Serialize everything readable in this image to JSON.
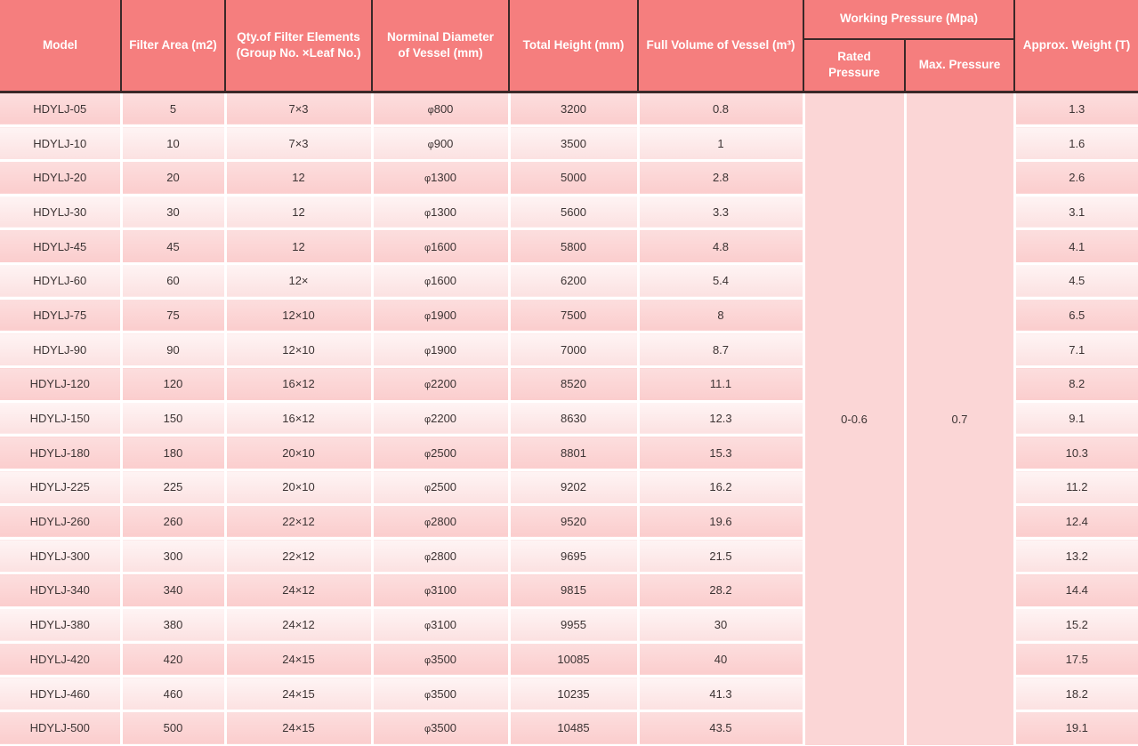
{
  "table": {
    "header": {
      "model": "Model",
      "filter_area": "Filter Area (m2)",
      "qty_filter_elements": "Qty.of Filter Elements (Group No. ×Leaf No.)",
      "nominal_diameter": "Norminal Diameter of Vessel (mm)",
      "total_height": "Total Height (mm)",
      "full_volume": "Full Volume of Vessel (m³)",
      "working_pressure": "Working Pressure (Mpa)",
      "rated_pressure": "Rated Pressure",
      "max_pressure": "Max. Pressure",
      "approx_weight": "Approx. Weight (T)"
    },
    "working_pressure_values": {
      "rated": "0-0.6",
      "max": "0.7"
    },
    "rows": [
      {
        "model": "HDYLJ-05",
        "filter_area": "5",
        "qty": "7×3",
        "diameter": "φ800",
        "height": "3200",
        "volume": "0.8",
        "weight": "1.3"
      },
      {
        "model": "HDYLJ-10",
        "filter_area": "10",
        "qty": "7×3",
        "diameter": "φ900",
        "height": "3500",
        "volume": "1",
        "weight": "1.6"
      },
      {
        "model": "HDYLJ-20",
        "filter_area": "20",
        "qty": "12",
        "diameter": "φ1300",
        "height": "5000",
        "volume": "2.8",
        "weight": "2.6"
      },
      {
        "model": "HDYLJ-30",
        "filter_area": "30",
        "qty": "12",
        "diameter": "φ1300",
        "height": "5600",
        "volume": "3.3",
        "weight": "3.1"
      },
      {
        "model": "HDYLJ-45",
        "filter_area": "45",
        "qty": "12",
        "diameter": "φ1600",
        "height": "5800",
        "volume": "4.8",
        "weight": "4.1"
      },
      {
        "model": "HDYLJ-60",
        "filter_area": "60",
        "qty": "12×",
        "diameter": "φ1600",
        "height": "6200",
        "volume": "5.4",
        "weight": "4.5"
      },
      {
        "model": "HDYLJ-75",
        "filter_area": "75",
        "qty": "12×10",
        "diameter": "φ1900",
        "height": "7500",
        "volume": "8",
        "weight": "6.5"
      },
      {
        "model": "HDYLJ-90",
        "filter_area": "90",
        "qty": "12×10",
        "diameter": "φ1900",
        "height": "7000",
        "volume": "8.7",
        "weight": "7.1"
      },
      {
        "model": "HDYLJ-120",
        "filter_area": "120",
        "qty": "16×12",
        "diameter": "φ2200",
        "height": "8520",
        "volume": "11.1",
        "weight": "8.2"
      },
      {
        "model": "HDYLJ-150",
        "filter_area": "150",
        "qty": "16×12",
        "diameter": "φ2200",
        "height": "8630",
        "volume": "12.3",
        "weight": "9.1"
      },
      {
        "model": "HDYLJ-180",
        "filter_area": "180",
        "qty": "20×10",
        "diameter": "φ2500",
        "height": "8801",
        "volume": "15.3",
        "weight": "10.3"
      },
      {
        "model": "HDYLJ-225",
        "filter_area": "225",
        "qty": "20×10",
        "diameter": "φ2500",
        "height": "9202",
        "volume": "16.2",
        "weight": "11.2"
      },
      {
        "model": "HDYLJ-260",
        "filter_area": "260",
        "qty": "22×12",
        "diameter": "φ2800",
        "height": "9520",
        "volume": "19.6",
        "weight": "12.4"
      },
      {
        "model": "HDYLJ-300",
        "filter_area": "300",
        "qty": "22×12",
        "diameter": "φ2800",
        "height": "9695",
        "volume": "21.5",
        "weight": "13.2"
      },
      {
        "model": "HDYLJ-340",
        "filter_area": "340",
        "qty": "24×12",
        "diameter": "φ3100",
        "height": "9815",
        "volume": "28.2",
        "weight": "14.4"
      },
      {
        "model": "HDYLJ-380",
        "filter_area": "380",
        "qty": "24×12",
        "diameter": "φ3100",
        "height": "9955",
        "volume": "30",
        "weight": "15.2"
      },
      {
        "model": "HDYLJ-420",
        "filter_area": "420",
        "qty": "24×15",
        "diameter": "φ3500",
        "height": "10085",
        "volume": "40",
        "weight": "17.5"
      },
      {
        "model": "HDYLJ-460",
        "filter_area": "460",
        "qty": "24×15",
        "diameter": "φ3500",
        "height": "10235",
        "volume": "41.3",
        "weight": "18.2"
      },
      {
        "model": "HDYLJ-500",
        "filter_area": "500",
        "qty": "24×15",
        "diameter": "φ3500",
        "height": "10485",
        "volume": "43.5",
        "weight": "19.1"
      }
    ],
    "colors": {
      "header_bg": "#f57e7e",
      "header_text": "#ffffff",
      "dark_border": "#3a2828",
      "row_dark": "#fbcdcd",
      "row_light": "#fce1e1",
      "merged_bg": "#fbd6d6",
      "body_text": "#3d3434"
    }
  }
}
